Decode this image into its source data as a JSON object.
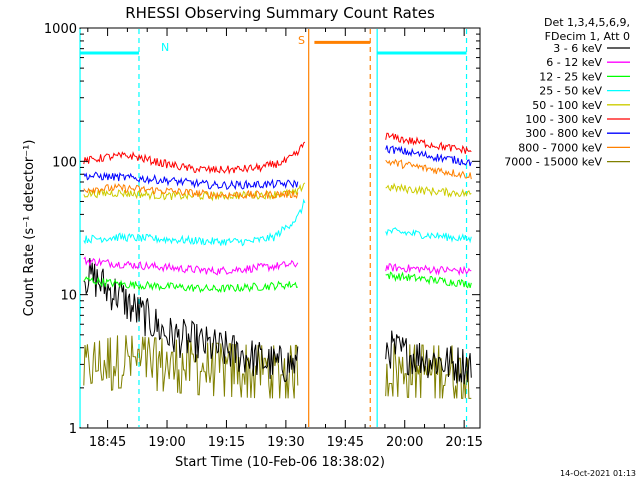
{
  "chart_data": {
    "type": "line",
    "title": "RHESSI Observing Summary Count Rates",
    "xlabel": "Start Time (10-Feb-06 18:38:02)",
    "ylabel": "Count Rate (s⁻¹ detector⁻¹)",
    "y_scale": "log",
    "ylim": [
      1,
      1000
    ],
    "x_ticks": [
      "18:45",
      "19:00",
      "19:15",
      "19:30",
      "19:45",
      "20:00",
      "20:15"
    ],
    "y_ticks": [
      "1",
      "10",
      "100",
      "1000"
    ],
    "header_lines": [
      "Det 1,3,4,5,6,9,",
      "FDecim 1, Att 0"
    ],
    "footer_date": "14-Oct-2021 01:13",
    "markers": [
      {
        "label": "N",
        "color": "#00ffff"
      },
      {
        "label": "S",
        "color": "#ff8000"
      }
    ],
    "series": [
      {
        "name": "3 - 6 keV",
        "color": "#000000",
        "seg1": [
          [
            18.65,
            14
          ],
          [
            18.7,
            13
          ],
          [
            18.75,
            11
          ],
          [
            18.8,
            10
          ],
          [
            18.85,
            8
          ],
          [
            18.9,
            7
          ],
          [
            18.95,
            6
          ],
          [
            19.0,
            5
          ],
          [
            19.1,
            4.5
          ],
          [
            19.2,
            4
          ],
          [
            19.3,
            3.6
          ],
          [
            19.35,
            3.4
          ],
          [
            19.4,
            3.2
          ],
          [
            19.45,
            3.0
          ],
          [
            19.5,
            3.0
          ],
          [
            19.55,
            3.0
          ]
        ],
        "seg2": [
          [
            19.92,
            4
          ],
          [
            20.0,
            3.6
          ],
          [
            20.1,
            3.3
          ],
          [
            20.2,
            3.0
          ],
          [
            20.28,
            3.0
          ]
        ]
      },
      {
        "name": "6 - 12 keV",
        "color": "#ff00ff",
        "seg1": [
          [
            18.65,
            18
          ],
          [
            18.8,
            17
          ],
          [
            19.0,
            16
          ],
          [
            19.2,
            15
          ],
          [
            19.4,
            16
          ],
          [
            19.55,
            17
          ]
        ],
        "seg2": [
          [
            19.92,
            16
          ],
          [
            20.1,
            15.5
          ],
          [
            20.28,
            15
          ]
        ]
      },
      {
        "name": "12 - 25 keV",
        "color": "#00ff00",
        "seg1": [
          [
            18.65,
            13
          ],
          [
            18.8,
            12
          ],
          [
            19.0,
            11.5
          ],
          [
            19.2,
            11
          ],
          [
            19.4,
            11.5
          ],
          [
            19.55,
            12
          ]
        ],
        "seg2": [
          [
            19.92,
            14
          ],
          [
            20.1,
            13
          ],
          [
            20.28,
            12
          ]
        ]
      },
      {
        "name": "25 - 50 keV",
        "color": "#00ffff",
        "seg1": [
          [
            18.65,
            26
          ],
          [
            18.8,
            27
          ],
          [
            19.0,
            26
          ],
          [
            19.2,
            25
          ],
          [
            19.35,
            25
          ],
          [
            19.45,
            27
          ],
          [
            19.5,
            32
          ],
          [
            19.55,
            38
          ],
          [
            19.58,
            50
          ]
        ],
        "seg2": [
          [
            19.92,
            30
          ],
          [
            20.1,
            28
          ],
          [
            20.28,
            26
          ]
        ]
      },
      {
        "name": "50 - 100 keV",
        "color": "#cccc00",
        "seg1": [
          [
            18.65,
            57
          ],
          [
            18.8,
            58
          ],
          [
            19.0,
            55
          ],
          [
            19.2,
            55
          ],
          [
            19.4,
            56
          ],
          [
            19.55,
            58
          ],
          [
            19.58,
            70
          ]
        ],
        "seg2": [
          [
            19.92,
            64
          ],
          [
            20.1,
            60
          ],
          [
            20.28,
            57
          ]
        ]
      },
      {
        "name": "100 - 300 keV",
        "color": "#ff0000",
        "seg1": [
          [
            18.65,
            100
          ],
          [
            18.75,
            108
          ],
          [
            18.85,
            110
          ],
          [
            19.0,
            95
          ],
          [
            19.1,
            88
          ],
          [
            19.2,
            86
          ],
          [
            19.3,
            87
          ],
          [
            19.4,
            90
          ],
          [
            19.5,
            100
          ],
          [
            19.55,
            115
          ],
          [
            19.58,
            140
          ]
        ],
        "seg2": [
          [
            19.92,
            155
          ],
          [
            20.0,
            145
          ],
          [
            20.1,
            135
          ],
          [
            20.2,
            125
          ],
          [
            20.28,
            120
          ]
        ]
      },
      {
        "name": "300 - 800 keV",
        "color": "#0000ff",
        "seg1": [
          [
            18.65,
            78
          ],
          [
            18.8,
            76
          ],
          [
            19.0,
            72
          ],
          [
            19.2,
            66
          ],
          [
            19.4,
            67
          ],
          [
            19.55,
            68
          ]
        ],
        "seg2": [
          [
            19.92,
            125
          ],
          [
            20.1,
            110
          ],
          [
            20.28,
            98
          ]
        ]
      },
      {
        "name": "800 - 7000 keV",
        "color": "#ff8000",
        "seg1": [
          [
            18.65,
            62
          ],
          [
            18.8,
            63
          ],
          [
            19.0,
            60
          ],
          [
            19.2,
            56
          ],
          [
            19.4,
            56
          ],
          [
            19.55,
            57
          ]
        ],
        "seg2": [
          [
            19.92,
            100
          ],
          [
            20.1,
            88
          ],
          [
            20.28,
            78
          ]
        ]
      },
      {
        "name": "7000 - 15000 keV",
        "color": "#808000",
        "seg1": [
          [
            18.65,
            2.5
          ],
          [
            18.8,
            3.0
          ],
          [
            19.0,
            2.8
          ],
          [
            19.2,
            2.6
          ],
          [
            19.4,
            2.5
          ],
          [
            19.55,
            2.5
          ]
        ],
        "seg2": [
          [
            19.92,
            2.6
          ],
          [
            20.1,
            2.5
          ],
          [
            20.28,
            2.5
          ]
        ]
      }
    ],
    "flags": [
      {
        "name": "N",
        "color": "#00ffff",
        "level": 650,
        "segs": [
          [
            18.634,
            18.882
          ],
          [
            19.884,
            20.26
          ]
        ]
      },
      {
        "name": "S",
        "color": "#ff8000",
        "level": 780,
        "segs": [
          [
            19.62,
            19.855
          ]
        ]
      }
    ],
    "vlines": [
      {
        "t": 18.634,
        "color": "#00ffff",
        "dash": false
      },
      {
        "t": 18.882,
        "color": "#00ffff",
        "dash": true
      },
      {
        "t": 19.596,
        "color": "#ff8000",
        "dash": false
      },
      {
        "t": 19.855,
        "color": "#ff8000",
        "dash": true
      },
      {
        "t": 19.884,
        "color": "#00ffff",
        "dash": false
      },
      {
        "t": 20.26,
        "color": "#00ffff",
        "dash": true
      }
    ]
  }
}
